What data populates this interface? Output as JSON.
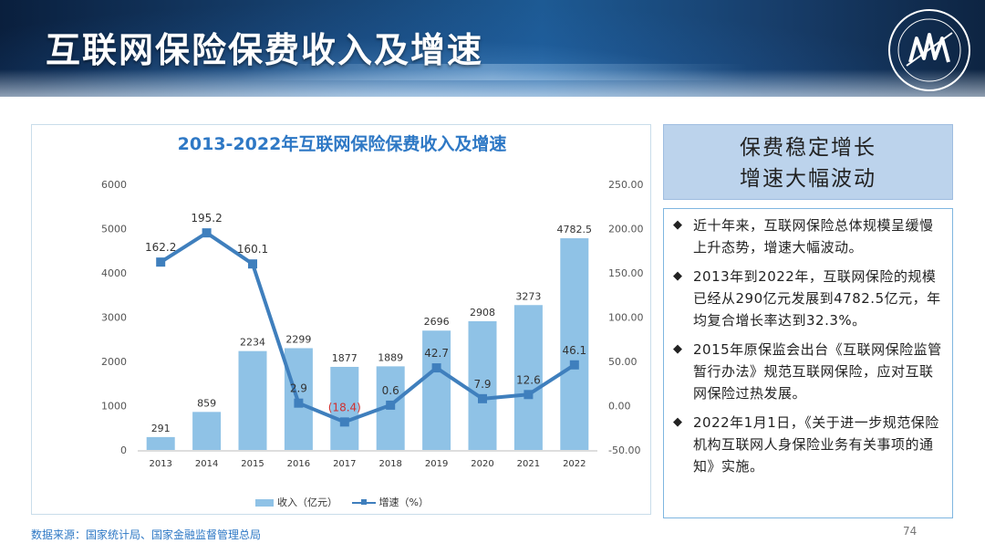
{
  "page": {
    "title": "互联网保险保费收入及增速",
    "source": "数据来源：国家统计局、国家金融监督管理总局",
    "page_number": "74"
  },
  "side": {
    "header_line1": "保费稳定增长",
    "header_line2": "增速大幅波动",
    "bullets": [
      "近十年来，互联网保险总体规模呈缓慢上升态势，增速大幅波动。",
      "2013年到2022年，互联网保险的规模已经从290亿元发展到4782.5亿元，年均复合增长率达到32.3%。",
      "2015年原保监会出台《互联网保险监管暂行办法》规范互联网保险，应对互联网保险过热发展。",
      "2022年1月1日，《关于进一步规范保险机构互联网人身保险业务有关事项的通知》实施。"
    ]
  },
  "chart_data": {
    "type": "bar",
    "title": "2013-2022年互联网保险保费收入及增速",
    "categories": [
      "2013",
      "2014",
      "2015",
      "2016",
      "2017",
      "2018",
      "2019",
      "2020",
      "2021",
      "2022"
    ],
    "series": [
      {
        "name": "收入（亿元）",
        "type": "bar",
        "axis": "left",
        "values": [
          291,
          859,
          2234,
          2299,
          1877,
          1889,
          2696,
          2908,
          3273,
          4782.5
        ],
        "labels": [
          "291",
          "859",
          "2234",
          "2299",
          "1877",
          "1889",
          "2696",
          "2908",
          "3273",
          "4782.5"
        ]
      },
      {
        "name": "增速（%）",
        "type": "line",
        "axis": "right",
        "values": [
          162.2,
          195.2,
          160.1,
          2.9,
          -18.4,
          0.6,
          42.7,
          7.9,
          12.6,
          46.1
        ],
        "labels": [
          "162.2",
          "195.2",
          "160.1",
          "2.9",
          "(18.4)",
          "0.6",
          "42.7",
          "7.9",
          "12.6",
          "46.1"
        ]
      }
    ],
    "left_axis": {
      "ylim": [
        0,
        6000
      ],
      "ticks": [
        "0",
        "1000",
        "2000",
        "3000",
        "4000",
        "5000",
        "6000"
      ]
    },
    "right_axis": {
      "ylim": [
        -50,
        250
      ],
      "ticks": [
        "-50.00",
        "0.00",
        "50.00",
        "100.00",
        "150.00",
        "200.00",
        "250.00"
      ]
    },
    "grid": false,
    "legend_position": "bottom",
    "colors": {
      "bar": "#8fc2e6",
      "line": "#3f7fbd",
      "negative_label": "#d03030",
      "title": "#2e78c5"
    }
  }
}
